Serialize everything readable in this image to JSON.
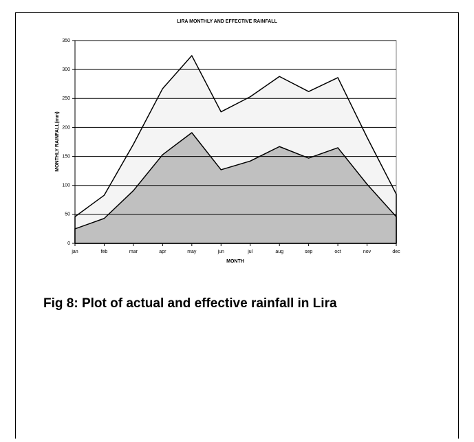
{
  "chart_data": {
    "type": "area",
    "title": "LIRA MONTHLY AND EFFECTIVE RAINFALL",
    "xlabel": "MONTH",
    "ylabel": "MONTHLY RAINFALL(mm)",
    "caption": "Fig 8: Plot of actual and effective rainfall in Lira",
    "categories": [
      "jan",
      "feb",
      "mar",
      "apr",
      "may",
      "jun",
      "jul",
      "aug",
      "sep",
      "oct",
      "nov",
      "dec"
    ],
    "series": [
      {
        "color": "#f4f4f4",
        "values": [
          46,
          83,
          171,
          267,
          324,
          227,
          253,
          288,
          262,
          286,
          183,
          85
        ]
      },
      {
        "color": "#c0c0c0",
        "values": [
          25,
          43,
          91,
          153,
          191,
          127,
          142,
          167,
          147,
          165,
          102,
          46
        ]
      }
    ],
    "ylim": [
      0,
      350
    ],
    "yticks": [
      0,
      50,
      100,
      150,
      200,
      250,
      300,
      350
    ],
    "grid": true
  }
}
